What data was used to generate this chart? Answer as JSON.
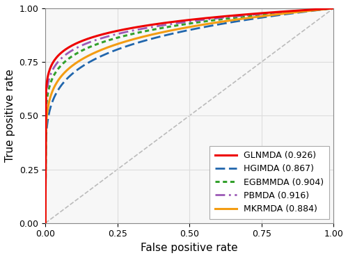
{
  "title": "",
  "xlabel": "False positive rate",
  "ylabel": "True positive rate",
  "models": [
    {
      "name": "GLNMDA (0.926)",
      "auc": 0.926,
      "color": "#EE0000",
      "linestyle": "solid",
      "linewidth": 2.2,
      "zorder": 6
    },
    {
      "name": "HGIMDA (0.867)",
      "auc": 0.867,
      "color": "#2166AC",
      "linestyle_key": "dashed",
      "linewidth": 2.0,
      "zorder": 2
    },
    {
      "name": "EGBMMDA (0.904)",
      "auc": 0.904,
      "color": "#33A02C",
      "linestyle_key": "dotted",
      "linewidth": 2.2,
      "zorder": 3
    },
    {
      "name": "PBMDA (0.916)",
      "auc": 0.916,
      "color": "#9B59B6",
      "linestyle_key": "dashdot",
      "linewidth": 2.0,
      "zorder": 4
    },
    {
      "name": "MKRMDA (0.884)",
      "auc": 0.884,
      "color": "#F39C12",
      "linestyle": "solid",
      "linewidth": 2.2,
      "zorder": 5
    }
  ],
  "diagonal_color": "#BBBBBB",
  "background_color": "#FFFFFF",
  "plot_bg_color": "#F7F7F7",
  "grid_color": "#DDDDDD",
  "xlim": [
    0.0,
    1.0
  ],
  "ylim": [
    0.0,
    1.0
  ],
  "xticks": [
    0.0,
    0.25,
    0.5,
    0.75,
    1.0
  ],
  "yticks": [
    0.0,
    0.25,
    0.5,
    0.75,
    1.0
  ],
  "legend_loc": "lower right",
  "legend_fontsize": 9.0,
  "axis_label_fontsize": 11,
  "tick_fontsize": 9
}
